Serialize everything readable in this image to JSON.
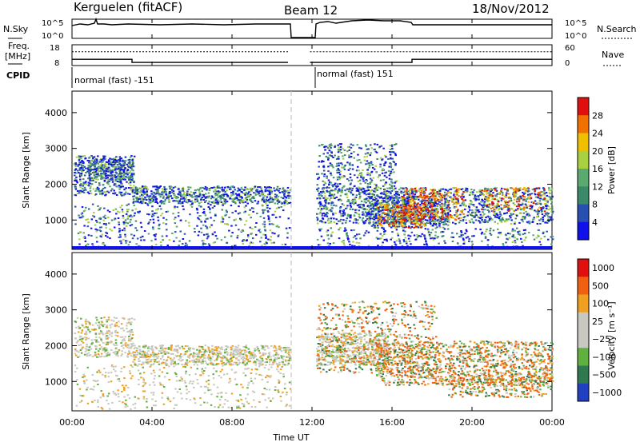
{
  "header": {
    "station": "Kerguelen (fitACF)",
    "beam": "Beam 12",
    "date": "18/Nov/2012"
  },
  "side_labels": {
    "nsky": "N.Sky",
    "freq_line1": "Freq.",
    "freq_line2": "[MHz]",
    "cpid": "CPID",
    "nsearch": "N.Search",
    "nave": "Nave"
  },
  "cpid_labels": [
    "normal (fast) -151",
    "normal (fast) 151"
  ],
  "chart_data": [
    {
      "type": "line",
      "panel": "noise",
      "series": [
        {
          "name": "N.Sky"
        },
        {
          "name": "N.Search"
        }
      ],
      "ylabels_left": [
        "10^5",
        "10^0"
      ],
      "ylabels_right": [
        "10^5",
        "10^0"
      ],
      "gap_hours": [
        10.8,
        11.9
      ]
    },
    {
      "type": "line",
      "panel": "frequency",
      "series": [
        {
          "name": "Freq.",
          "x": [
            0,
            3.0,
            3.0,
            10.8,
            11.9,
            17.0,
            17.0,
            24
          ],
          "values": [
            11,
            11,
            9.5,
            9.5,
            9.5,
            9.5,
            11,
            11
          ]
        },
        {
          "name": "Nave",
          "x": [
            0,
            10.8,
            11.9,
            24
          ],
          "values": [
            40,
            40,
            40,
            40
          ]
        }
      ],
      "ylabels_left": [
        "18",
        "8"
      ],
      "ylabels_right": [
        "60",
        "0"
      ]
    },
    {
      "type": "heatmap",
      "panel": "power",
      "ylabel": "Slant Range [km]",
      "yticks": [
        "4000",
        "3000",
        "2000",
        "1000"
      ],
      "ylim": [
        180,
        4600
      ],
      "colorbar_label": "Power [dB]",
      "colorbar_ticks": [
        "28",
        "24",
        "20",
        "16",
        "12",
        "8",
        "4"
      ],
      "colors": [
        "#1010e8",
        "#2850b0",
        "#3a8a6a",
        "#5aaa70",
        "#a8d040",
        "#f0c000",
        "#f07000",
        "#e01010"
      ]
    },
    {
      "type": "heatmap",
      "panel": "velocity",
      "ylabel": "Slant Range [km]",
      "yticks": [
        "4000",
        "3000",
        "2000",
        "1000"
      ],
      "ylim": [
        180,
        4600
      ],
      "colorbar_label": "Velocity [m s⁻¹]",
      "colorbar_ticks": [
        "1000",
        "500",
        "100",
        "25",
        "−25",
        "−100",
        "−500",
        "−1000"
      ],
      "colors": [
        "#2040c0",
        "#307850",
        "#60b040",
        "#c8c8c0",
        "#c8c8c0",
        "#f0a020",
        "#f06010",
        "#e01010"
      ]
    }
  ],
  "xaxis": {
    "label": "Time UT",
    "ticks": [
      "00:00",
      "04:00",
      "08:00",
      "12:00",
      "16:00",
      "20:00",
      "00:00"
    ]
  }
}
